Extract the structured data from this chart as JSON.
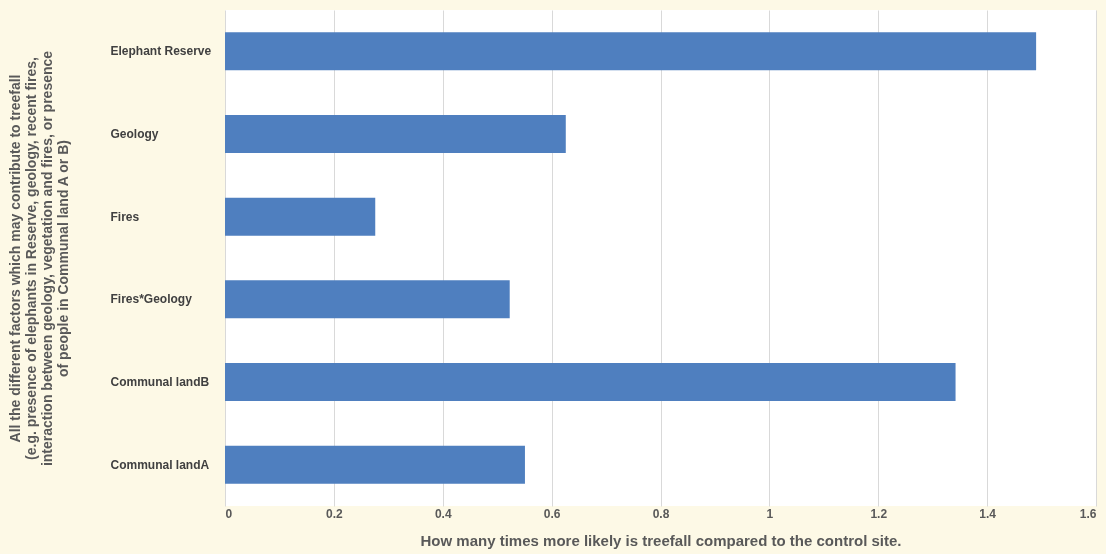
{
  "chart_data": {
    "type": "bar",
    "orientation": "horizontal",
    "categories": [
      "Elephant Reserve",
      "Geology",
      "Fires",
      "Fires*Geology",
      "Communal landB",
      "Communal landA"
    ],
    "values": [
      1.49,
      0.626,
      0.276,
      0.523,
      1.342,
      0.551
    ],
    "color": "#4f7fbf",
    "xlim": [
      0,
      1.6
    ],
    "xticks": [
      0,
      0.2,
      0.4,
      0.6,
      0.8,
      1,
      1.2,
      1.4,
      1.6
    ],
    "xlabel": "How many times more likely is treefall compared to the control site.",
    "ylabel": "All the different factors which may contribute to treefall\n(e.g. presence of elephants in Reserve, geology, recent fires,\ninteraction between geology, vegetation and fires, or presence\nof people in Communal land A or B)",
    "grid": "x"
  }
}
